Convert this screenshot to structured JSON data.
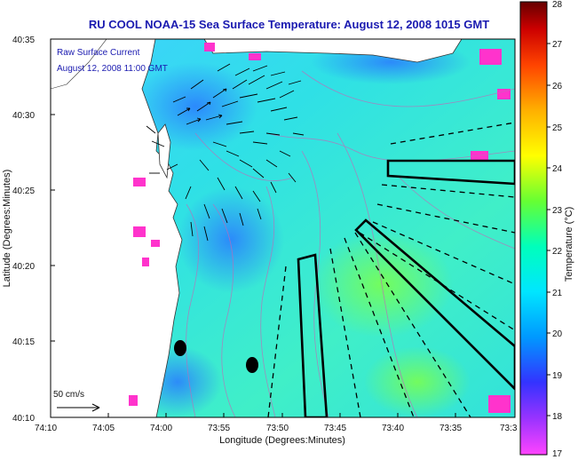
{
  "title": "RU COOL  NOAA-15  Sea Surface Temperature:  August 12, 2008 1015 GMT",
  "legend": {
    "line1": "Raw Surface Current",
    "line2": "August 12, 2008 11:00 GMT",
    "scale_label": "50 cm/s"
  },
  "axes": {
    "xlabel": "Longitude (Degrees:Minutes)",
    "ylabel": "Latitude (Degrees:Minutes)",
    "xticks": [
      "74:10",
      "74:05",
      "74:00",
      "73:55",
      "73:50",
      "73:45",
      "73:40",
      "73:35",
      "73:3"
    ],
    "yticks": [
      "40:35",
      "40:30",
      "40:25",
      "40:20",
      "40:15",
      "40:10"
    ]
  },
  "colorbar": {
    "label": "Temperature (°C)",
    "ticks": [
      "28",
      "27",
      "26",
      "25",
      "24",
      "23",
      "22",
      "21",
      "20",
      "19",
      "18",
      "17"
    ],
    "min": 17,
    "max": 28
  },
  "colors": {
    "title": "#1a1ab0",
    "land": "#ffffff",
    "sea_base": "#35dfe8",
    "outline": "#000000"
  }
}
